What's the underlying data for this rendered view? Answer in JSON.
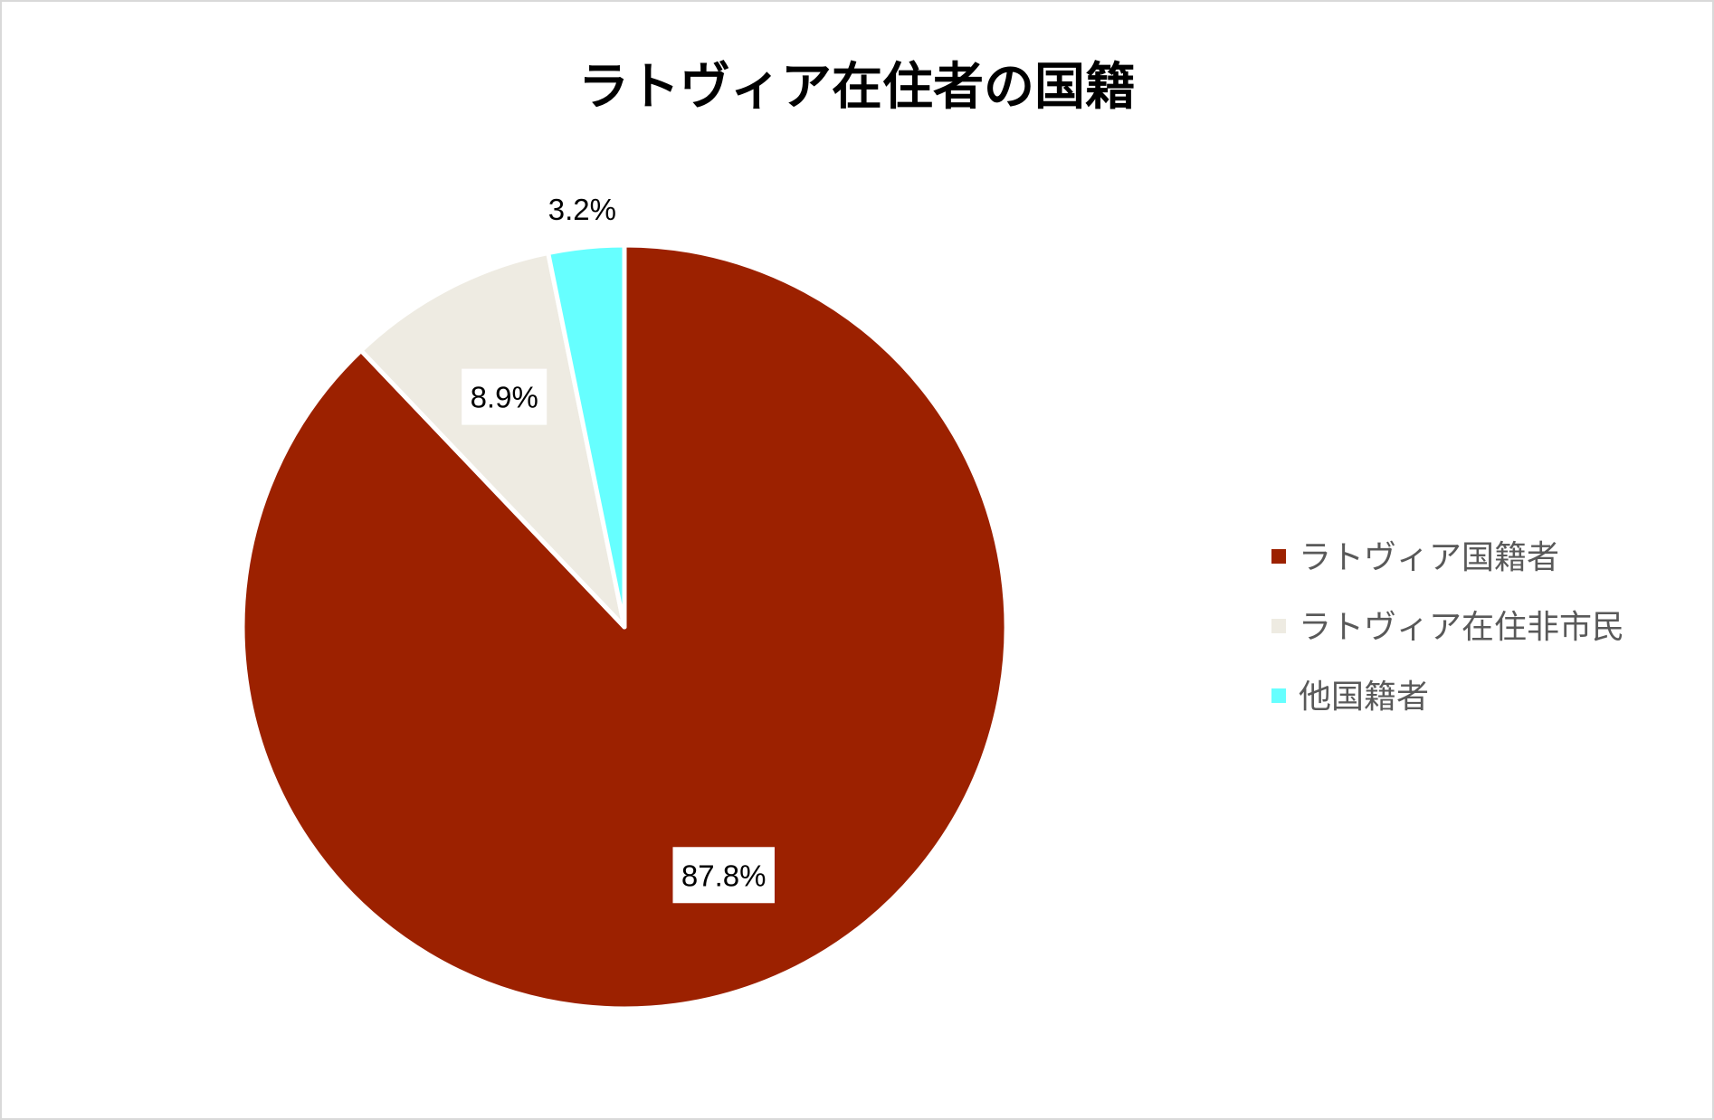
{
  "chart_data": {
    "type": "pie",
    "title": "ラトヴィア在住者の国籍",
    "categories": [
      "ラトヴィア国籍者",
      "ラトヴィア在住非市民",
      "他国籍者"
    ],
    "values": [
      87.8,
      8.9,
      3.2
    ],
    "data_labels": [
      "87.8%",
      "8.9%",
      "3.2%"
    ],
    "colors": [
      "#9c2100",
      "#eeebe2",
      "#66ffff"
    ],
    "start_angle_deg": 0,
    "direction": "clockwise",
    "legend": "right"
  }
}
